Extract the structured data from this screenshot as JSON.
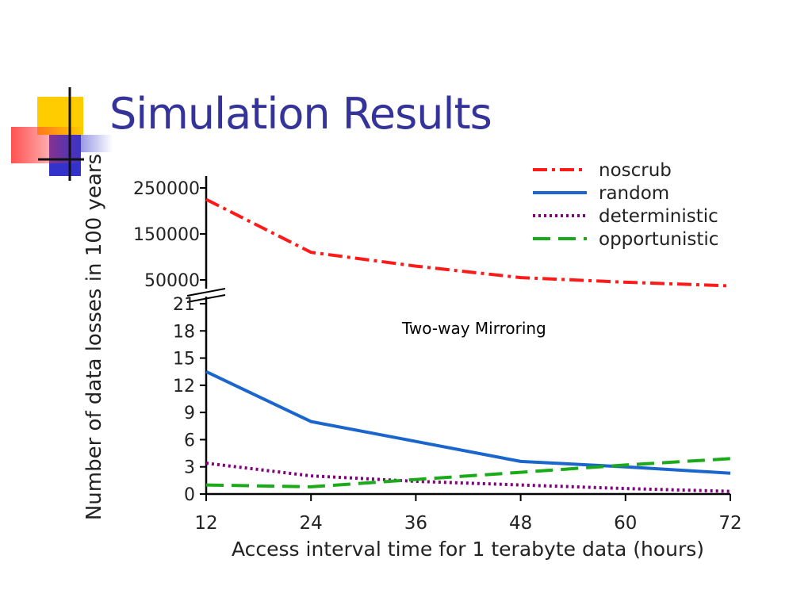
{
  "slide": {
    "title": "Simulation Results",
    "title_color": "#333399"
  },
  "chart_data": {
    "type": "line",
    "title": "",
    "annotation": "Two-way Mirroring",
    "xlabel": "Access interval time for 1 terabyte data (hours)",
    "ylabel": "Number of data losses in 100 years",
    "x": [
      12,
      24,
      36,
      48,
      60,
      72
    ],
    "x_ticks": [
      "12",
      "24",
      "36",
      "48",
      "60",
      "72"
    ],
    "xlim": [
      12,
      72
    ],
    "axis_break": true,
    "upper_axis": {
      "ticks": [
        "250000",
        "150000",
        "50000"
      ],
      "tick_values": [
        250000,
        150000,
        50000
      ]
    },
    "lower_axis": {
      "ylim": [
        0,
        21
      ],
      "ticks": [
        "21",
        "18",
        "15",
        "12",
        "9",
        "6",
        "3",
        "0"
      ],
      "tick_values": [
        21,
        18,
        15,
        12,
        9,
        6,
        3,
        0
      ]
    },
    "legend_position": "top-right",
    "grid": false,
    "series": [
      {
        "name": "noscrub",
        "panel": "upper",
        "color": "#ff1a1a",
        "style": "dash-dot",
        "x": [
          12,
          24,
          36,
          48,
          60,
          72
        ],
        "values": [
          225000,
          110000,
          80000,
          55000,
          45000,
          37000
        ]
      },
      {
        "name": "random",
        "panel": "lower",
        "color": "#1a66cc",
        "style": "solid",
        "x": [
          12,
          24,
          36,
          48,
          60,
          72
        ],
        "values": [
          13.5,
          8,
          5.8,
          3.6,
          3.0,
          2.3
        ]
      },
      {
        "name": "deterministic",
        "panel": "lower",
        "color": "#800080",
        "style": "dotted",
        "x": [
          12,
          24,
          36,
          48,
          60,
          72
        ],
        "values": [
          3.4,
          2.0,
          1.4,
          1.0,
          0.6,
          0.3
        ]
      },
      {
        "name": "opportunistic",
        "panel": "lower",
        "color": "#1aaa1a",
        "style": "dashed",
        "x": [
          12,
          24,
          36,
          48,
          60,
          72
        ],
        "values": [
          1.0,
          0.8,
          1.6,
          2.4,
          3.2,
          3.9
        ]
      }
    ]
  }
}
